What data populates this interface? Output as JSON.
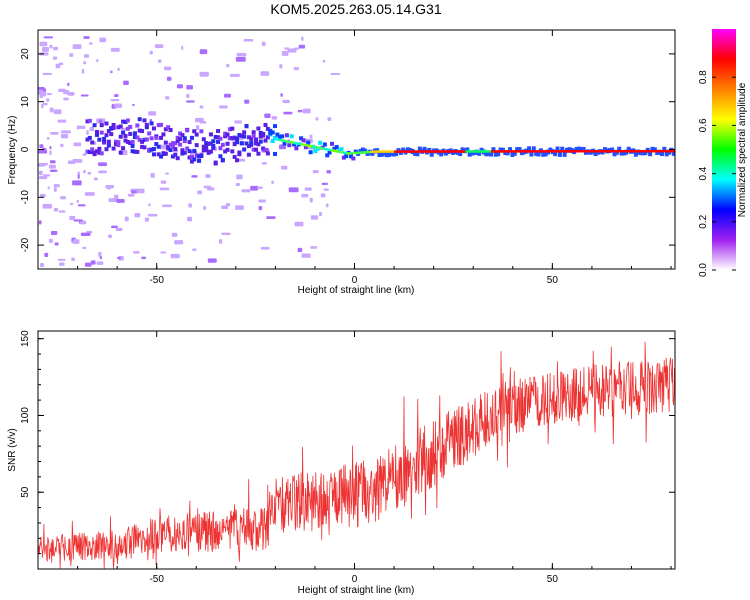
{
  "title": "KOM5.2025.263.05.14.G31",
  "chart_data": [
    {
      "type": "heatmap",
      "xlabel": "Height of straight line (km)",
      "ylabel": "Frequency (Hz)",
      "xlim": [
        -80,
        81
      ],
      "ylim": [
        -25,
        25
      ],
      "xticks": [
        -50,
        0,
        50
      ],
      "yticks": [
        -20,
        -10,
        0,
        10,
        20
      ],
      "xtick_labels": [
        "-50",
        "0",
        "50"
      ],
      "ytick_labels": [
        "-20",
        "-10",
        "0",
        "10",
        "20"
      ],
      "ridge": [
        {
          "x": -65,
          "y": 2.5
        },
        {
          "x": -55,
          "y": 3
        },
        {
          "x": -45,
          "y": 1
        },
        {
          "x": -35,
          "y": 0.5
        },
        {
          "x": -22,
          "y": 2.5
        },
        {
          "x": -10,
          "y": 0.5
        },
        {
          "x": -2,
          "y": -0.8
        },
        {
          "x": 5,
          "y": -0.4
        },
        {
          "x": 81,
          "y": -0.3
        }
      ],
      "colorbar": {
        "label": "Normalized spectral amplitude",
        "range": [
          0,
          1
        ],
        "ticks": [
          0.0,
          0.2,
          0.4,
          0.6,
          0.8
        ],
        "tick_labels": [
          "0.0",
          "0.2",
          "0.4",
          "0.6",
          "0.8"
        ],
        "colors": [
          "#ffffff",
          "#a020f0",
          "#0000ff",
          "#00ffff",
          "#00ff00",
          "#ffff00",
          "#ff8000",
          "#ff0000",
          "#ff00ff"
        ]
      }
    },
    {
      "type": "line",
      "xlabel": "Height of straight line (km)",
      "ylabel": "SNR (v/v)",
      "xlim": [
        -80,
        81
      ],
      "ylim": [
        0,
        155
      ],
      "xticks": [
        -50,
        0,
        50
      ],
      "yticks": [
        50,
        100,
        150
      ],
      "xtick_labels": [
        "-50",
        "0",
        "50"
      ],
      "ytick_labels": [
        "50",
        "100",
        "150"
      ],
      "series": [
        {
          "name": "SNR",
          "color": "#ee3333",
          "trend_x": [
            -80,
            -60,
            -50,
            -35,
            -23,
            -21,
            -10,
            0,
            10,
            20,
            30,
            40,
            55,
            70,
            81
          ],
          "trend_y": [
            14,
            15,
            22,
            25,
            25,
            40,
            45,
            48,
            58,
            76,
            92,
            106,
            114,
            118,
            120
          ],
          "noise_amplitude": [
            8,
            10,
            12,
            14,
            15,
            18,
            20,
            22,
            22,
            22,
            20,
            18,
            18,
            18,
            18
          ],
          "peak_max": 155
        }
      ]
    }
  ]
}
